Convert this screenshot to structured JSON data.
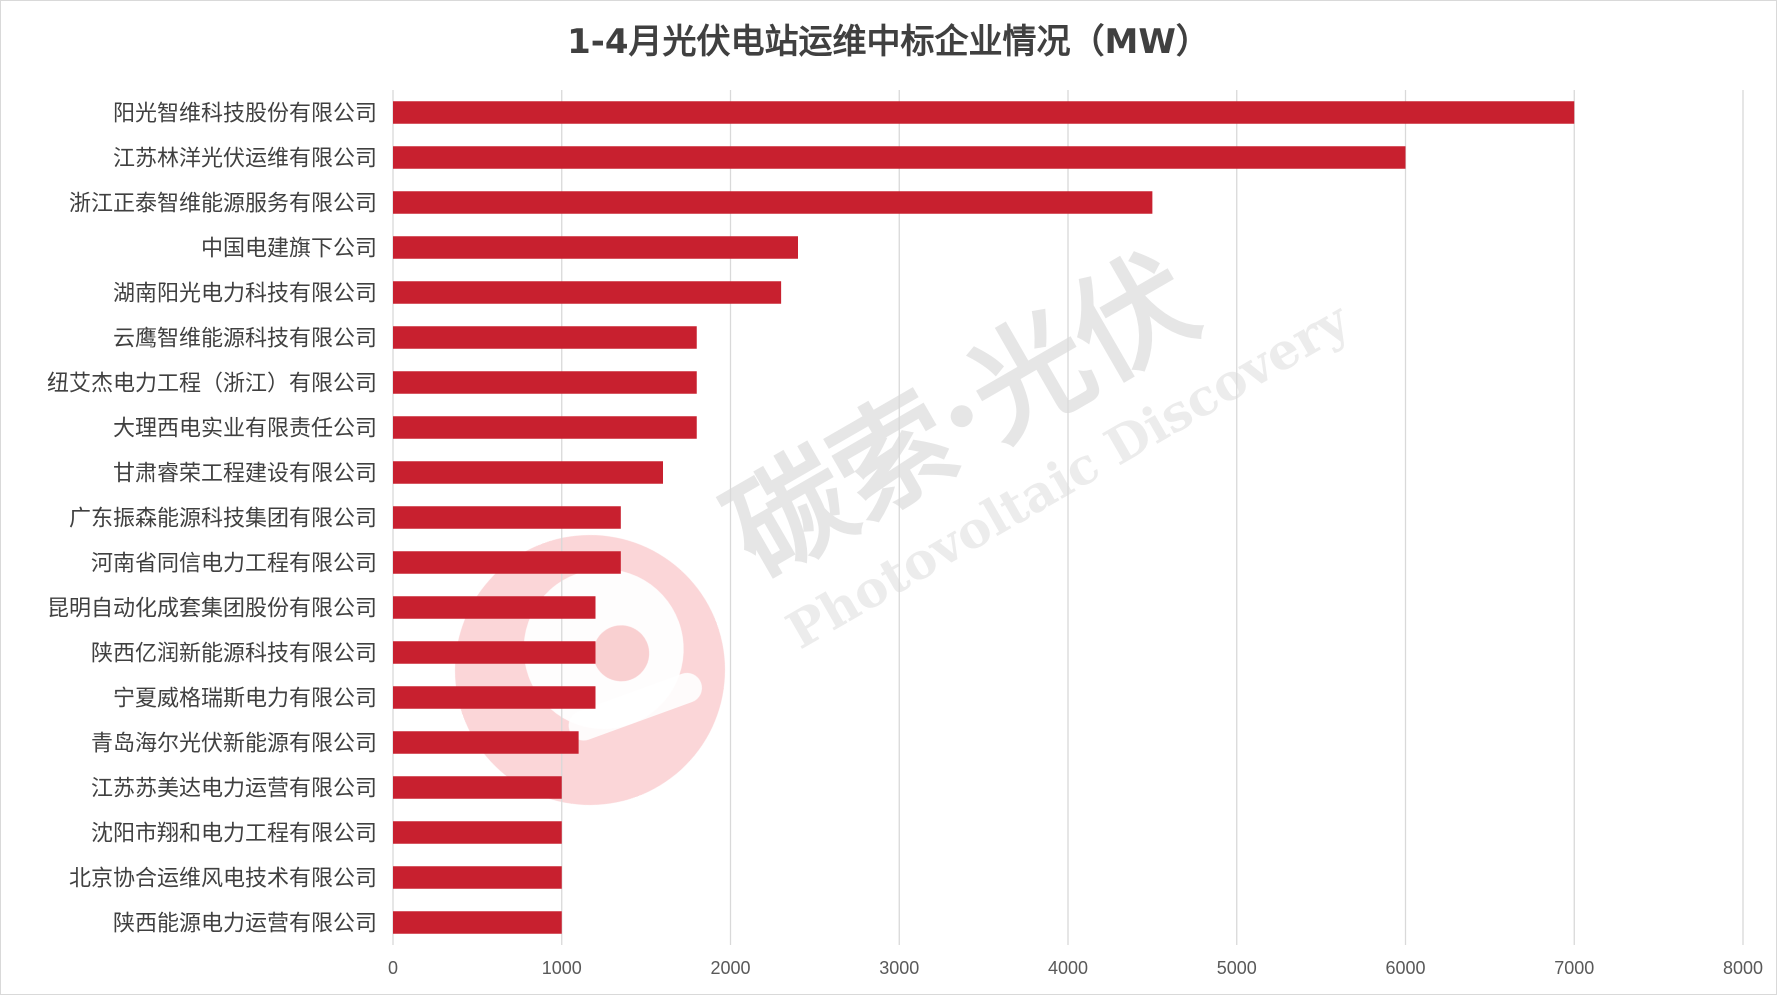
{
  "chart_data": {
    "type": "bar",
    "orientation": "horizontal",
    "title": "1-4月光伏电站运维中标企业情况（MW）",
    "categories": [
      "阳光智维科技股份有限公司",
      "江苏林洋光伏运维有限公司",
      "浙江正泰智维能源服务有限公司",
      "中国电建旗下公司",
      "湖南阳光电力科技有限公司",
      "云鹰智维能源科技有限公司",
      "纽艾杰电力工程（浙江）有限公司",
      "大理西电实业有限责任公司",
      "甘肃睿荣工程建设有限公司",
      "广东振森能源科技集团有限公司",
      "河南省同信电力工程有限公司",
      "昆明自动化成套集团股份有限公司",
      "陕西亿润新能源科技有限公司",
      "宁夏威格瑞斯电力有限公司",
      "青岛海尔光伏新能源有限公司",
      "江苏苏美达电力运营有限公司",
      "沈阳市翔和电力工程有限公司",
      "北京协合运维风电技术有限公司",
      "陕西能源电力运营有限公司"
    ],
    "values": [
      7000,
      6000,
      4500,
      2400,
      2300,
      1800,
      1800,
      1800,
      1600,
      1350,
      1350,
      1200,
      1200,
      1200,
      1100,
      1000,
      1000,
      1000,
      1000
    ],
    "xlim": [
      0,
      8000
    ],
    "xticks": [
      0,
      1000,
      2000,
      3000,
      4000,
      5000,
      6000,
      7000,
      8000
    ],
    "grid": "vertical",
    "bar_color": "#c8202f",
    "grid_color": "#d9d9d9"
  },
  "watermark": {
    "brand_cn": "碳索·光伏",
    "brand_en": "Photovoltaic Discovery",
    "logo_color": "#e8343c"
  }
}
